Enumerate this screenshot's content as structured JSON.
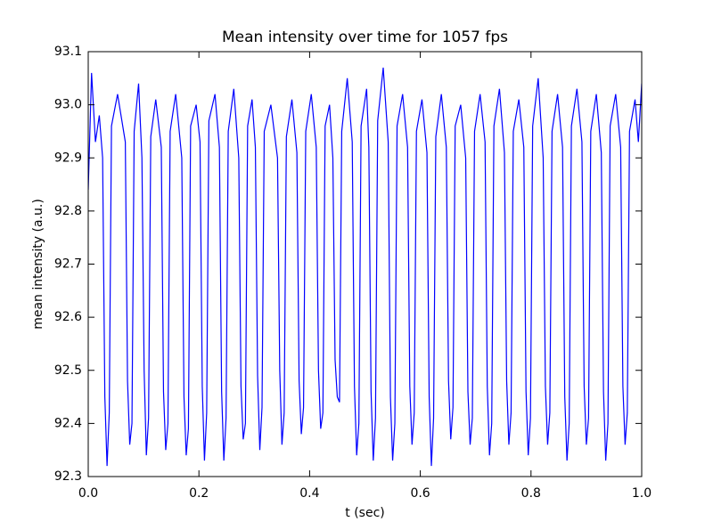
{
  "chart_data": {
    "type": "line",
    "title": "Mean intensity over time for 1057 fps",
    "x_label": "t (sec)",
    "y_label": "mean intensity (a.u.)",
    "xlim": [
      0,
      1
    ],
    "ylim": [
      92.3,
      93.1
    ],
    "xticks": [
      {
        "value": 0,
        "label": "0.0"
      },
      0.2,
      0.4,
      0.6,
      0.8,
      {
        "value": 1,
        "label": "1.0"
      }
    ],
    "yticks": [
      92.3,
      92.4,
      92.5,
      92.6,
      92.7,
      92.8,
      92.9,
      {
        "value": 93,
        "label": "93.0"
      },
      93.1
    ],
    "grid": false,
    "series": [
      {
        "color": "#0000ff",
        "x": [
          0,
          0.006,
          0.013,
          0.02,
          0.026,
          0.03,
          0.034,
          0.038,
          0.042,
          0.053,
          0.067,
          0.071,
          0.075,
          0.079,
          0.083,
          0.091,
          0.097,
          0.101,
          0.105,
          0.109,
          0.113,
          0.122,
          0.132,
          0.136,
          0.14,
          0.144,
          0.148,
          0.158,
          0.169,
          0.173,
          0.177,
          0.181,
          0.185,
          0.195,
          0.202,
          0.206,
          0.21,
          0.214,
          0.218,
          0.229,
          0.237,
          0.241,
          0.245,
          0.249,
          0.253,
          0.263,
          0.272,
          0.276,
          0.28,
          0.284,
          0.288,
          0.296,
          0.302,
          0.306,
          0.31,
          0.314,
          0.318,
          0.33,
          0.342,
          0.346,
          0.35,
          0.354,
          0.358,
          0.368,
          0.377,
          0.381,
          0.385,
          0.389,
          0.393,
          0.403,
          0.412,
          0.416,
          0.42,
          0.424,
          0.428,
          0.436,
          0.442,
          0.446,
          0.45,
          0.454,
          0.458,
          0.468,
          0.477,
          0.481,
          0.485,
          0.489,
          0.493,
          0.503,
          0.507,
          0.511,
          0.515,
          0.519,
          0.523,
          0.533,
          0.542,
          0.546,
          0.55,
          0.554,
          0.558,
          0.568,
          0.577,
          0.581,
          0.585,
          0.589,
          0.593,
          0.603,
          0.612,
          0.616,
          0.62,
          0.624,
          0.628,
          0.638,
          0.647,
          0.651,
          0.655,
          0.659,
          0.663,
          0.673,
          0.682,
          0.686,
          0.69,
          0.694,
          0.698,
          0.708,
          0.717,
          0.721,
          0.725,
          0.729,
          0.733,
          0.743,
          0.752,
          0.756,
          0.76,
          0.764,
          0.768,
          0.778,
          0.787,
          0.791,
          0.795,
          0.799,
          0.803,
          0.813,
          0.822,
          0.826,
          0.83,
          0.834,
          0.838,
          0.848,
          0.857,
          0.861,
          0.865,
          0.869,
          0.873,
          0.883,
          0.892,
          0.896,
          0.9,
          0.904,
          0.908,
          0.918,
          0.927,
          0.931,
          0.935,
          0.939,
          0.943,
          0.953,
          0.962,
          0.966,
          0.97,
          0.974,
          0.978,
          0.988,
          0.994,
          1.0
        ],
        "values": [
          92.84,
          93.06,
          92.93,
          92.98,
          92.9,
          92.45,
          92.32,
          92.42,
          92.96,
          93.02,
          92.93,
          92.48,
          92.36,
          92.4,
          92.95,
          93.04,
          92.9,
          92.5,
          92.34,
          92.41,
          92.94,
          93.01,
          92.92,
          92.46,
          92.35,
          92.4,
          92.95,
          93.02,
          92.9,
          92.45,
          92.34,
          92.39,
          92.96,
          93.0,
          92.93,
          92.47,
          92.33,
          92.42,
          92.97,
          93.02,
          92.92,
          92.46,
          92.33,
          92.41,
          92.95,
          93.03,
          92.9,
          92.47,
          92.37,
          92.4,
          92.96,
          93.01,
          92.92,
          92.49,
          92.35,
          92.43,
          92.95,
          93.0,
          92.9,
          92.5,
          92.36,
          92.42,
          92.94,
          93.01,
          92.91,
          92.48,
          92.38,
          92.43,
          92.95,
          93.02,
          92.92,
          92.5,
          92.39,
          92.42,
          92.96,
          93.0,
          92.9,
          92.52,
          92.45,
          92.44,
          92.95,
          93.05,
          92.93,
          92.47,
          92.34,
          92.4,
          92.96,
          93.03,
          92.92,
          92.46,
          92.33,
          92.41,
          92.97,
          93.07,
          92.93,
          92.45,
          92.33,
          92.4,
          92.96,
          93.02,
          92.92,
          92.47,
          92.36,
          92.42,
          92.95,
          93.01,
          92.91,
          92.45,
          92.32,
          92.41,
          92.94,
          93.02,
          92.92,
          92.48,
          92.37,
          92.43,
          92.96,
          93.0,
          92.9,
          92.46,
          92.36,
          92.41,
          92.95,
          93.02,
          92.93,
          92.47,
          92.34,
          92.4,
          92.96,
          93.03,
          92.91,
          92.48,
          92.36,
          92.42,
          92.95,
          93.01,
          92.92,
          92.46,
          92.34,
          92.41,
          92.96,
          93.05,
          92.9,
          92.47,
          92.36,
          92.42,
          92.95,
          93.02,
          92.92,
          92.45,
          92.33,
          92.4,
          92.96,
          93.03,
          92.93,
          92.47,
          92.36,
          92.41,
          92.95,
          93.02,
          92.91,
          92.46,
          92.33,
          92.4,
          92.96,
          93.02,
          92.92,
          92.47,
          92.36,
          92.42,
          92.95,
          93.01,
          92.93,
          93.04
        ]
      }
    ]
  }
}
